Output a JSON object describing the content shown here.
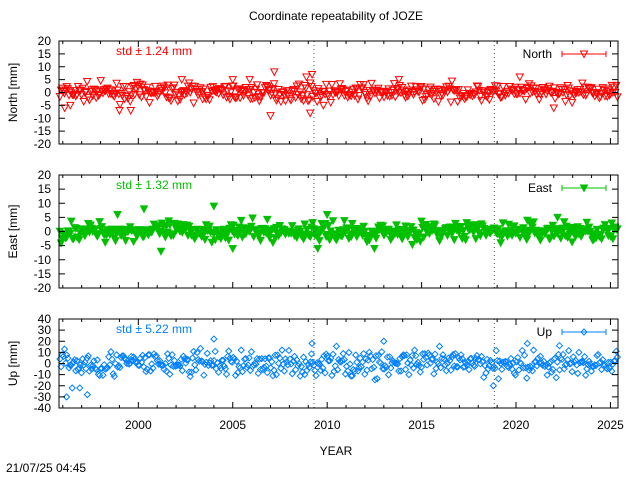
{
  "chart_data": {
    "type": "scatter",
    "title": "Coordinate repeatability of JOZE",
    "xlabel": "YEAR",
    "x_ticks": [
      2000,
      2005,
      2010,
      2015,
      2020,
      2025
    ],
    "xlim": [
      1995.8,
      2025.4
    ],
    "event_lines": [
      2009.3,
      2018.85
    ],
    "grid": false,
    "legend_position": "top-right",
    "panels": [
      {
        "name": "North",
        "ylabel": "North [mm]",
        "ylim": [
          -20,
          20
        ],
        "y_ticks": [
          20,
          15,
          10,
          5,
          0,
          -5,
          -10,
          -15,
          -20
        ],
        "std_label": "std ± 1.24 mm",
        "color": "#ff0000",
        "marker": "triangle-down-open",
        "spread_mm": 1.6,
        "outliers": [
          {
            "x": 1996.1,
            "y": -6
          },
          {
            "x": 1996.4,
            "y": -5
          },
          {
            "x": 1999.0,
            "y": -7
          },
          {
            "x": 1999.6,
            "y": -7
          },
          {
            "x": 2002.3,
            "y": 5
          },
          {
            "x": 2005.0,
            "y": 5
          },
          {
            "x": 2005.9,
            "y": 5
          },
          {
            "x": 2007.0,
            "y": -9
          },
          {
            "x": 2007.2,
            "y": 8
          },
          {
            "x": 2008.9,
            "y": 6
          },
          {
            "x": 2009.1,
            "y": -8
          },
          {
            "x": 2009.2,
            "y": 7
          },
          {
            "x": 2009.8,
            "y": -5
          },
          {
            "x": 2013.8,
            "y": 5
          },
          {
            "x": 2020.2,
            "y": 6
          },
          {
            "x": 2022.0,
            "y": -6
          }
        ]
      },
      {
        "name": "East",
        "ylabel": "East [mm]",
        "ylim": [
          -20,
          20
        ],
        "y_ticks": [
          20,
          15,
          10,
          5,
          0,
          -5,
          -10,
          -15,
          -20
        ],
        "std_label": "std ± 1.32 mm",
        "color": "#00c000",
        "marker": "triangle-down-filled",
        "spread_mm": 1.7,
        "outliers": [
          {
            "x": 1998.9,
            "y": 6
          },
          {
            "x": 2000.3,
            "y": 8
          },
          {
            "x": 2001.2,
            "y": -7
          },
          {
            "x": 2004.0,
            "y": 9
          },
          {
            "x": 2005.0,
            "y": -6
          },
          {
            "x": 2009.5,
            "y": -6
          },
          {
            "x": 2010.0,
            "y": 6
          },
          {
            "x": 2012.5,
            "y": -6
          },
          {
            "x": 2020.6,
            "y": 4
          },
          {
            "x": 2022.2,
            "y": 5
          }
        ]
      },
      {
        "name": "Up",
        "ylabel": "Up [mm]",
        "ylim": [
          -40,
          40
        ],
        "y_ticks": [
          40,
          30,
          20,
          10,
          0,
          -10,
          -20,
          -30,
          -40
        ],
        "std_label": "std ± 5.22 mm",
        "color": "#0080ff",
        "marker": "diamond-open",
        "spread_mm": 6,
        "outliers": [
          {
            "x": 1996.2,
            "y": -30
          },
          {
            "x": 1996.5,
            "y": -22
          },
          {
            "x": 1996.9,
            "y": -22
          },
          {
            "x": 1997.3,
            "y": -28
          },
          {
            "x": 2004.0,
            "y": 22
          },
          {
            "x": 2009.2,
            "y": 18
          },
          {
            "x": 2013.0,
            "y": 20
          },
          {
            "x": 2018.8,
            "y": -20
          },
          {
            "x": 2020.6,
            "y": 18
          },
          {
            "x": 2022.3,
            "y": 16
          }
        ]
      }
    ]
  },
  "footer": {
    "timestamp": "21/07/25 04:45"
  }
}
